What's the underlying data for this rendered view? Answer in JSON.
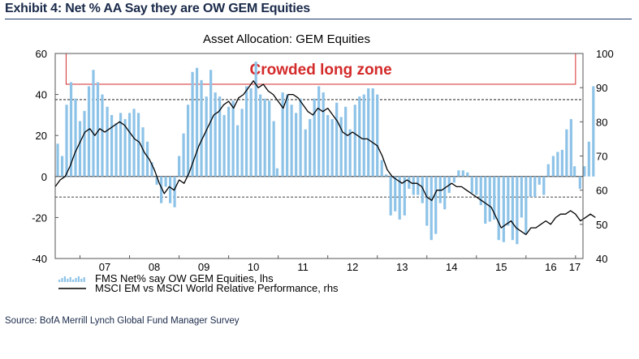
{
  "exhibit_title": "Exhibit 4: Net % AA Say they are OW GEM Equities",
  "source": "Source: BofA Merrill Lynch Global Fund Manager Survey",
  "colors": {
    "bars": "#8ec3e8",
    "line": "#000000",
    "zone_border": "#d42a2a",
    "zone_text": "#d42a2a",
    "frame": "#555555",
    "title_rule": "#1f3a6b"
  },
  "chart_data": {
    "type": "bar+line",
    "title": "Asset Allocation: GEM Equities",
    "annotation": "Crowded long zone",
    "x_ticks": [
      "07",
      "08",
      "09",
      "10",
      "11",
      "12",
      "13",
      "14",
      "15",
      "16",
      "17"
    ],
    "x_range": [
      2006.5,
      2017.15
    ],
    "y_left": {
      "range": [
        -40,
        60
      ],
      "ticks": [
        "60",
        "40",
        "20",
        "0",
        "-20",
        "-40"
      ],
      "reference_lines": [
        37.5,
        -10
      ]
    },
    "y_right": {
      "range": [
        40,
        100
      ],
      "ticks": [
        "100",
        "90",
        "80",
        "70",
        "60",
        "50",
        "40"
      ]
    },
    "crowded_zone": {
      "y_left_from": 45,
      "y_left_to": 60,
      "x_from": 2006.72,
      "x_to": 2017.0
    },
    "legend": [
      {
        "label": "FMS Net% say OW GEM Equities, lhs",
        "kind": "bar"
      },
      {
        "label": "MSCI EM vs MSCI World Relative Performance, rhs",
        "kind": "line"
      }
    ],
    "grid": false,
    "series": [
      {
        "name": "FMS Net% say OW GEM Equities, lhs",
        "axis": "left",
        "kind": "bar",
        "points": [
          [
            2006.55,
            16
          ],
          [
            2006.64,
            10
          ],
          [
            2006.73,
            35
          ],
          [
            2006.82,
            46
          ],
          [
            2006.91,
            38
          ],
          [
            2007.0,
            27
          ],
          [
            2007.09,
            32
          ],
          [
            2007.18,
            44
          ],
          [
            2007.27,
            52
          ],
          [
            2007.36,
            46
          ],
          [
            2007.45,
            40
          ],
          [
            2007.55,
            34
          ],
          [
            2007.64,
            30
          ],
          [
            2007.73,
            26
          ],
          [
            2007.82,
            31
          ],
          [
            2007.91,
            28
          ],
          [
            2008.0,
            31
          ],
          [
            2008.09,
            33
          ],
          [
            2008.18,
            31
          ],
          [
            2008.27,
            24
          ],
          [
            2008.36,
            17
          ],
          [
            2008.45,
            7
          ],
          [
            2008.55,
            -4
          ],
          [
            2008.64,
            -13
          ],
          [
            2008.73,
            -5
          ],
          [
            2008.82,
            -13
          ],
          [
            2008.91,
            -15
          ],
          [
            2009.0,
            10
          ],
          [
            2009.09,
            21
          ],
          [
            2009.18,
            35
          ],
          [
            2009.27,
            51
          ],
          [
            2009.36,
            53
          ],
          [
            2009.45,
            47
          ],
          [
            2009.55,
            39
          ],
          [
            2009.64,
            52
          ],
          [
            2009.73,
            41
          ],
          [
            2009.82,
            39
          ],
          [
            2009.91,
            30
          ],
          [
            2010.0,
            34
          ],
          [
            2010.09,
            37
          ],
          [
            2010.18,
            25
          ],
          [
            2010.27,
            33
          ],
          [
            2010.36,
            44
          ],
          [
            2010.45,
            43
          ],
          [
            2010.55,
            56
          ],
          [
            2010.64,
            40
          ],
          [
            2010.73,
            38
          ],
          [
            2010.82,
            37
          ],
          [
            2010.91,
            27
          ],
          [
            2010.98,
            4
          ],
          [
            2011.09,
            41
          ],
          [
            2011.18,
            40
          ],
          [
            2011.27,
            35
          ],
          [
            2011.36,
            31
          ],
          [
            2011.45,
            38
          ],
          [
            2011.55,
            23
          ],
          [
            2011.64,
            28
          ],
          [
            2011.73,
            38
          ],
          [
            2011.82,
            44
          ],
          [
            2011.91,
            41
          ],
          [
            2012.0,
            30
          ],
          [
            2012.09,
            28
          ],
          [
            2012.18,
            36
          ],
          [
            2012.27,
            29
          ],
          [
            2012.36,
            34
          ],
          [
            2012.45,
            23
          ],
          [
            2012.55,
            35
          ],
          [
            2012.64,
            39
          ],
          [
            2012.73,
            40
          ],
          [
            2012.82,
            43
          ],
          [
            2012.91,
            43
          ],
          [
            2013.0,
            40
          ],
          [
            2013.09,
            8
          ],
          [
            2013.18,
            1
          ],
          [
            2013.27,
            -19
          ],
          [
            2013.36,
            -17
          ],
          [
            2013.45,
            -21
          ],
          [
            2013.55,
            -19
          ],
          [
            2013.64,
            -6
          ],
          [
            2013.73,
            -9
          ],
          [
            2013.82,
            -9
          ],
          [
            2013.91,
            -13
          ],
          [
            2014.0,
            -24
          ],
          [
            2014.09,
            -31
          ],
          [
            2014.18,
            -28
          ],
          [
            2014.27,
            -13
          ],
          [
            2014.36,
            -16
          ],
          [
            2014.45,
            -8
          ],
          [
            2014.55,
            -3
          ],
          [
            2014.64,
            3
          ],
          [
            2014.73,
            3
          ],
          [
            2014.82,
            2
          ],
          [
            2014.91,
            -8
          ],
          [
            2015.0,
            -9
          ],
          [
            2015.09,
            -14
          ],
          [
            2015.18,
            -23
          ],
          [
            2015.27,
            -22
          ],
          [
            2015.36,
            -21
          ],
          [
            2015.45,
            -31
          ],
          [
            2015.55,
            -32
          ],
          [
            2015.64,
            -24
          ],
          [
            2015.73,
            -31
          ],
          [
            2015.82,
            -33
          ],
          [
            2015.91,
            -20
          ],
          [
            2016.0,
            -28
          ],
          [
            2016.09,
            -10
          ],
          [
            2016.18,
            -10
          ],
          [
            2016.27,
            -4
          ],
          [
            2016.36,
            -9
          ],
          [
            2016.45,
            6
          ],
          [
            2016.55,
            10
          ],
          [
            2016.64,
            12
          ],
          [
            2016.73,
            13
          ],
          [
            2016.82,
            23
          ],
          [
            2016.91,
            28
          ],
          [
            2016.98,
            5
          ],
          [
            2017.09,
            -6
          ],
          [
            2017.18,
            5
          ],
          [
            2017.27,
            17
          ],
          [
            2017.36,
            44
          ]
        ]
      },
      {
        "name": "MSCI EM vs MSCI World Relative Performance, rhs",
        "axis": "right",
        "kind": "line",
        "points": [
          [
            2006.5,
            61
          ],
          [
            2006.6,
            63
          ],
          [
            2006.7,
            64
          ],
          [
            2006.8,
            67
          ],
          [
            2006.9,
            71
          ],
          [
            2007.0,
            74
          ],
          [
            2007.1,
            77
          ],
          [
            2007.2,
            78
          ],
          [
            2007.3,
            76
          ],
          [
            2007.4,
            78
          ],
          [
            2007.5,
            77
          ],
          [
            2007.6,
            78
          ],
          [
            2007.7,
            79
          ],
          [
            2007.8,
            80
          ],
          [
            2007.9,
            79
          ],
          [
            2008.0,
            77
          ],
          [
            2008.1,
            75
          ],
          [
            2008.2,
            74
          ],
          [
            2008.3,
            71
          ],
          [
            2008.4,
            69
          ],
          [
            2008.5,
            66
          ],
          [
            2008.6,
            62
          ],
          [
            2008.7,
            59
          ],
          [
            2008.8,
            61
          ],
          [
            2008.9,
            60
          ],
          [
            2009.0,
            63
          ],
          [
            2009.1,
            62
          ],
          [
            2009.2,
            65
          ],
          [
            2009.3,
            69
          ],
          [
            2009.4,
            73
          ],
          [
            2009.5,
            76
          ],
          [
            2009.6,
            79
          ],
          [
            2009.7,
            82
          ],
          [
            2009.8,
            83
          ],
          [
            2009.9,
            85
          ],
          [
            2010.0,
            86
          ],
          [
            2010.1,
            84
          ],
          [
            2010.2,
            87
          ],
          [
            2010.3,
            88
          ],
          [
            2010.4,
            90
          ],
          [
            2010.5,
            92
          ],
          [
            2010.6,
            90
          ],
          [
            2010.7,
            91
          ],
          [
            2010.8,
            89
          ],
          [
            2010.9,
            88
          ],
          [
            2011.0,
            86
          ],
          [
            2011.1,
            84
          ],
          [
            2011.2,
            88
          ],
          [
            2011.3,
            88
          ],
          [
            2011.4,
            87
          ],
          [
            2011.5,
            85
          ],
          [
            2011.6,
            83
          ],
          [
            2011.7,
            82
          ],
          [
            2011.8,
            84
          ],
          [
            2011.9,
            83
          ],
          [
            2012.0,
            84
          ],
          [
            2012.1,
            82
          ],
          [
            2012.2,
            80
          ],
          [
            2012.3,
            77
          ],
          [
            2012.4,
            76
          ],
          [
            2012.5,
            77
          ],
          [
            2012.6,
            76
          ],
          [
            2012.7,
            75
          ],
          [
            2012.8,
            75
          ],
          [
            2012.9,
            74
          ],
          [
            2013.0,
            73
          ],
          [
            2013.1,
            70
          ],
          [
            2013.2,
            66
          ],
          [
            2013.3,
            64
          ],
          [
            2013.4,
            63
          ],
          [
            2013.5,
            62
          ],
          [
            2013.6,
            63
          ],
          [
            2013.7,
            62
          ],
          [
            2013.8,
            62
          ],
          [
            2013.9,
            61
          ],
          [
            2014.0,
            58
          ],
          [
            2014.1,
            57
          ],
          [
            2014.2,
            60
          ],
          [
            2014.3,
            60
          ],
          [
            2014.4,
            61
          ],
          [
            2014.5,
            62
          ],
          [
            2014.6,
            61
          ],
          [
            2014.7,
            61
          ],
          [
            2014.8,
            60
          ],
          [
            2014.9,
            59
          ],
          [
            2015.0,
            58
          ],
          [
            2015.1,
            57
          ],
          [
            2015.2,
            56
          ],
          [
            2015.3,
            55
          ],
          [
            2015.4,
            52
          ],
          [
            2015.5,
            49
          ],
          [
            2015.6,
            50
          ],
          [
            2015.7,
            51
          ],
          [
            2015.8,
            49
          ],
          [
            2015.9,
            48
          ],
          [
            2016.0,
            47
          ],
          [
            2016.1,
            49
          ],
          [
            2016.2,
            49
          ],
          [
            2016.3,
            50
          ],
          [
            2016.4,
            51
          ],
          [
            2016.5,
            50
          ],
          [
            2016.6,
            52
          ],
          [
            2016.7,
            53
          ],
          [
            2016.8,
            53
          ],
          [
            2016.9,
            54
          ],
          [
            2017.0,
            53
          ],
          [
            2017.1,
            51
          ],
          [
            2017.2,
            52
          ],
          [
            2017.3,
            53
          ],
          [
            2017.4,
            52
          ]
        ]
      }
    ]
  }
}
